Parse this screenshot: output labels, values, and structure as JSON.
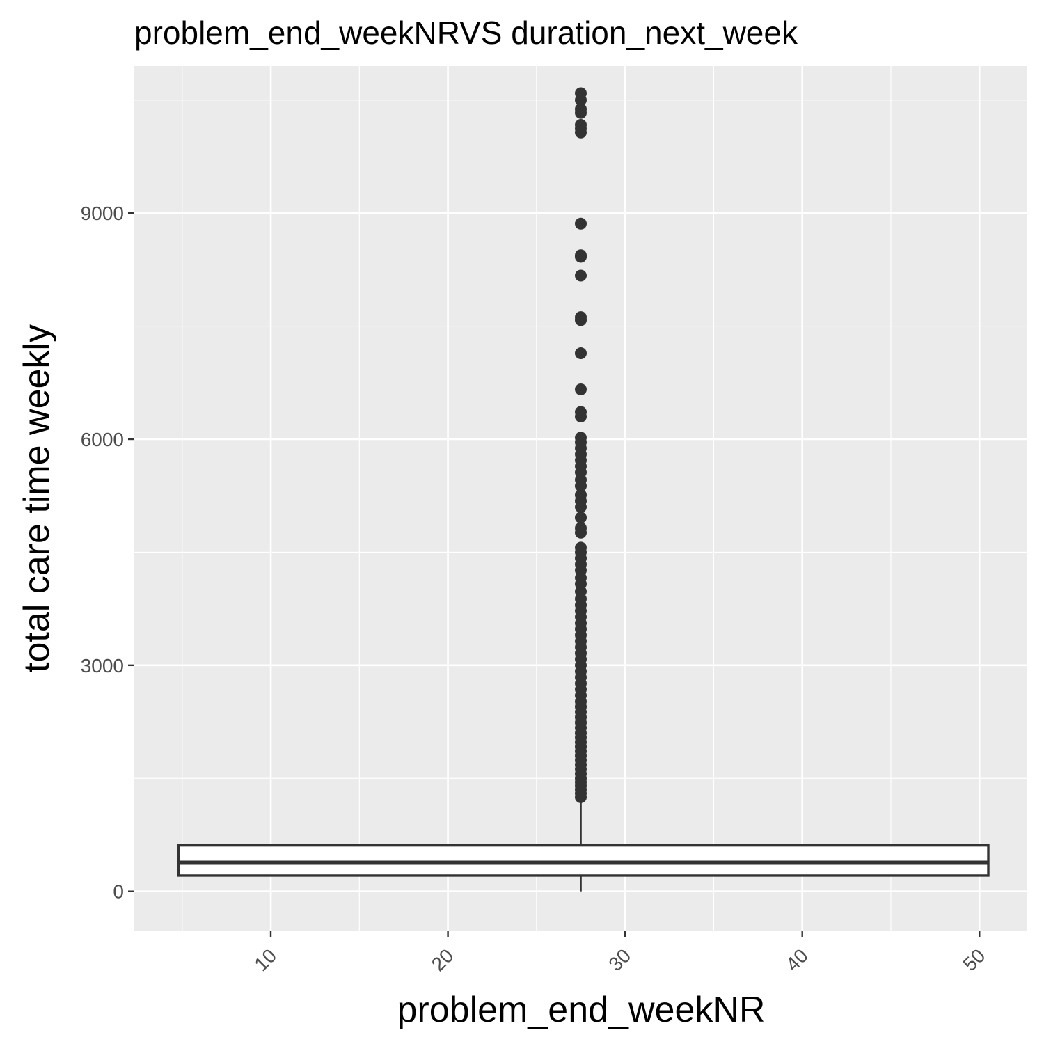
{
  "chart_data": {
    "type": "box",
    "title": "problem_end_weekNRVS duration_next_week",
    "xlabel": "problem_end_weekNR",
    "ylabel": "total care time weekly",
    "xlim": [
      2.3,
      52.7
    ],
    "ylim": [
      -520,
      10950
    ],
    "x_ticks": [
      10,
      20,
      30,
      40,
      50
    ],
    "x_tick_labels": [
      "10",
      "20",
      "30",
      "40",
      "50"
    ],
    "y_ticks": [
      0,
      3000,
      6000,
      9000
    ],
    "y_tick_labels": [
      "0",
      "3000",
      "6000",
      "9000"
    ],
    "grid": true,
    "legend": "none",
    "colors": {
      "panel": "#ebebeb",
      "grid": "#ffffff",
      "box_outline": "#333333",
      "box_fill": "#ffffff",
      "outlier": "#333333",
      "tick_text": "#4d4d4d"
    },
    "box": {
      "x": 27.5,
      "x_min": 4.8,
      "x_max": 50.5,
      "lower_whisker": 0,
      "q1": 210,
      "median": 380,
      "q3": 610,
      "upper_whisker": 1210,
      "outliers": [
        1250,
        1300,
        1350,
        1400,
        1450,
        1500,
        1560,
        1620,
        1680,
        1740,
        1800,
        1860,
        1920,
        1980,
        2040,
        2100,
        2170,
        2240,
        2310,
        2380,
        2450,
        2520,
        2600,
        2680,
        2760,
        2840,
        2920,
        3000,
        3080,
        3160,
        3240,
        3320,
        3400,
        3480,
        3560,
        3640,
        3720,
        3800,
        3880,
        3980,
        4080,
        4160,
        4260,
        4340,
        4420,
        4500,
        4560,
        4760,
        4820,
        4960,
        5100,
        5180,
        5260,
        5380,
        5460,
        5560,
        5640,
        5720,
        5800,
        5880,
        5960,
        6020,
        6300,
        6360,
        6660,
        7140,
        7580,
        7620,
        8170,
        8420,
        8440,
        8860,
        10070,
        10120,
        10170,
        10330,
        10380,
        10500,
        10590
      ]
    }
  }
}
